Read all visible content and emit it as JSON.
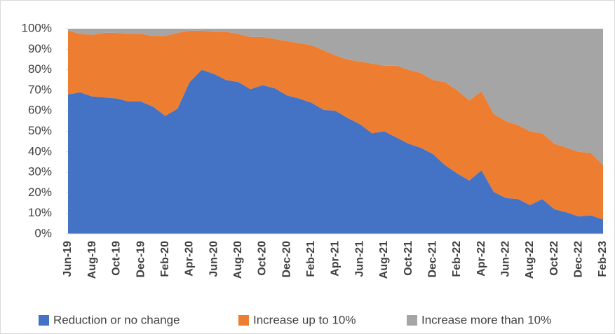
{
  "chart_data": {
    "type": "stacked_area",
    "categories": [
      "Jun-19",
      null,
      "Aug-19",
      null,
      "Oct-19",
      null,
      "Dec-19",
      null,
      "Feb-20",
      null,
      "Apr-20",
      null,
      "Jun-20",
      null,
      "Aug-20",
      null,
      "Oct-20",
      null,
      "Dec-20",
      null,
      "Feb-21",
      null,
      "Apr-21",
      null,
      "Jun-21",
      null,
      "Aug-21",
      null,
      "Oct-21",
      null,
      "Dec-21",
      null,
      "Feb-22",
      null,
      "Apr-22",
      null,
      "Jun-22",
      null,
      "Aug-22",
      null,
      "Oct-22",
      null,
      "Dec-22",
      null,
      "Feb-23"
    ],
    "series": [
      {
        "name": "Reduction or no change",
        "color": "#4472c4",
        "values": [
          68,
          69,
          67,
          66.5,
          66,
          64.5,
          64.5,
          62,
          57.5,
          61,
          74,
          80,
          78,
          75,
          74,
          70.5,
          72.5,
          71,
          67.5,
          66,
          64,
          60.5,
          60,
          56.5,
          53.5,
          49,
          50,
          47,
          44,
          42,
          39,
          33.5,
          29.5,
          26,
          31,
          20.5,
          17.5,
          17,
          14,
          17,
          12,
          10.5,
          8.5,
          9,
          7
        ]
      },
      {
        "name": "Increase up to 10%",
        "color": "#ed7d31",
        "values": [
          31,
          28.5,
          30,
          31.5,
          32,
          33,
          33,
          34.5,
          39,
          37,
          25,
          19,
          20.5,
          23.5,
          23.5,
          25.5,
          23.5,
          24,
          26.5,
          27,
          28,
          29,
          27,
          28.5,
          30.5,
          34,
          32,
          35,
          36,
          36.5,
          36,
          40.5,
          40.5,
          39,
          38.5,
          38,
          37.5,
          36,
          36,
          32,
          32,
          31.5,
          31.5,
          30.5,
          26.5
        ]
      },
      {
        "name": "Increase more than 10%",
        "color": "#a5a5a5",
        "values": [
          1,
          2.5,
          3,
          2,
          2,
          2.5,
          2.5,
          3.5,
          3.5,
          2,
          1,
          1,
          1.5,
          1.5,
          2.5,
          4,
          4,
          5,
          6,
          7,
          8,
          10.5,
          13,
          15,
          16,
          17,
          18,
          18,
          20,
          21.5,
          25,
          26,
          30,
          35,
          30.5,
          41.5,
          45,
          47,
          50,
          51,
          56,
          58,
          60,
          60.5,
          66.5
        ]
      }
    ],
    "ylim": [
      0,
      100
    ],
    "yticks": [
      {
        "value": 0,
        "label": "0%"
      },
      {
        "value": 10,
        "label": "10%"
      },
      {
        "value": 20,
        "label": "20%"
      },
      {
        "value": 30,
        "label": "30%"
      },
      {
        "value": 40,
        "label": "40%"
      },
      {
        "value": 50,
        "label": "50%"
      },
      {
        "value": 60,
        "label": "60%"
      },
      {
        "value": 70,
        "label": "70%"
      },
      {
        "value": 80,
        "label": "80%"
      },
      {
        "value": 90,
        "label": "90%"
      },
      {
        "value": 100,
        "label": "100%"
      }
    ],
    "legend": "bottom"
  }
}
